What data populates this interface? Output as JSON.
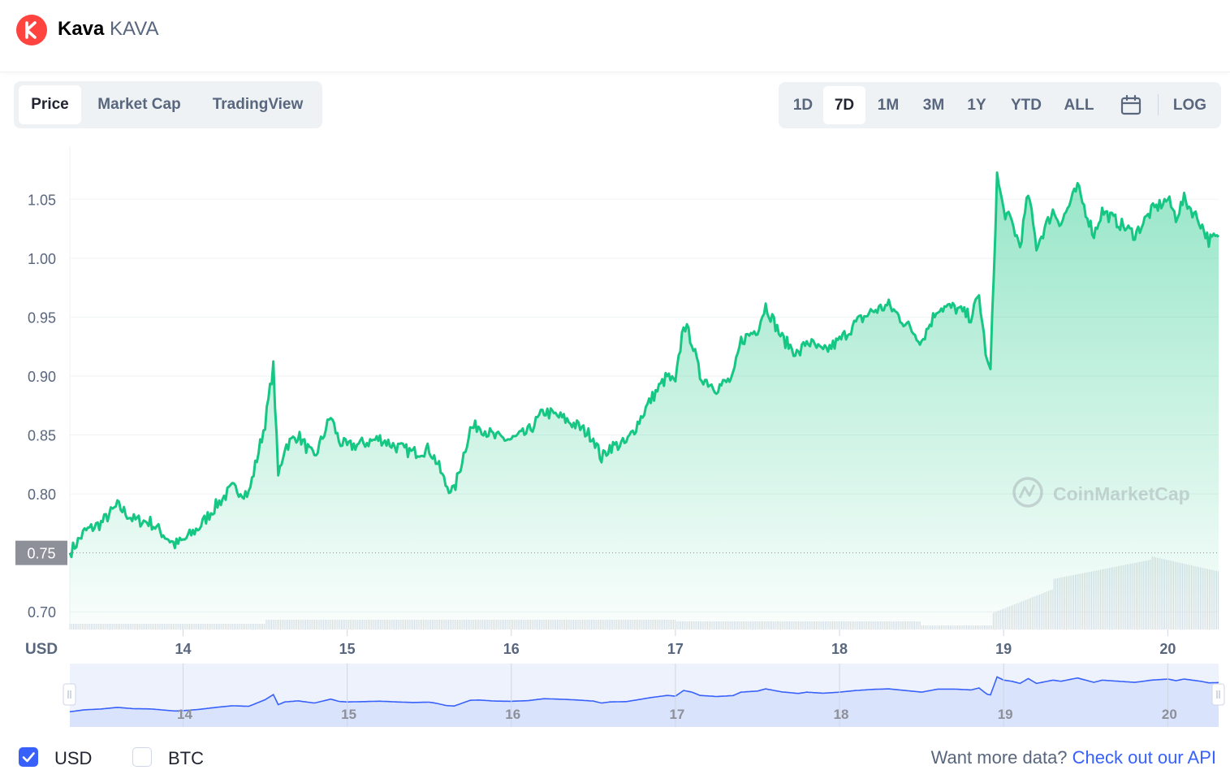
{
  "header": {
    "name": "Kava",
    "symbol": "KAVA"
  },
  "tabs": [
    "Price",
    "Market Cap",
    "TradingView"
  ],
  "ranges": [
    "1D",
    "7D",
    "1M",
    "3M",
    "1Y",
    "YTD",
    "ALL"
  ],
  "log_label": "LOG",
  "currency_options": [
    {
      "label": "USD",
      "checked": true
    },
    {
      "label": "BTC",
      "checked": false
    }
  ],
  "more_data": {
    "text": "Want more data?",
    "link": "Check out our API"
  },
  "watermark": "CoinMarketCap",
  "colors": {
    "line": "#16c784",
    "nav_line": "#3861fb",
    "current_label_bg": "#8d9099",
    "accent": "#3861fb"
  },
  "chart_data": {
    "type": "area",
    "xlabel": "USD",
    "y_ticks": [
      1.05,
      1.0,
      0.95,
      0.9,
      0.85,
      0.8,
      0.7
    ],
    "ylim": [
      0.685,
      1.095
    ],
    "x_ticks": [
      "14",
      "15",
      "16",
      "17",
      "18",
      "19",
      "20"
    ],
    "x_tick_positions": [
      14,
      15,
      16,
      17,
      18,
      19,
      20
    ],
    "xlim": [
      13.31,
      20.31
    ],
    "current_price": 0.75,
    "price_series": {
      "x": [
        13.31,
        13.4,
        13.5,
        13.6,
        13.7,
        13.8,
        13.95,
        14.0,
        14.1,
        14.2,
        14.3,
        14.4,
        14.5,
        14.55,
        14.58,
        14.62,
        14.7,
        14.8,
        14.9,
        14.95,
        15.0,
        15.1,
        15.2,
        15.3,
        15.4,
        15.5,
        15.55,
        15.6,
        15.65,
        15.75,
        15.8,
        15.9,
        16.0,
        16.1,
        16.2,
        16.3,
        16.4,
        16.5,
        16.55,
        16.6,
        16.7,
        16.75,
        16.85,
        16.95,
        17.0,
        17.05,
        17.1,
        17.15,
        17.25,
        17.35,
        17.4,
        17.5,
        17.55,
        17.65,
        17.75,
        17.8,
        17.9,
        18.0,
        18.1,
        18.2,
        18.3,
        18.4,
        18.5,
        18.6,
        18.7,
        18.8,
        18.85,
        18.9,
        18.92,
        18.96,
        19.0,
        19.05,
        19.1,
        19.15,
        19.2,
        19.3,
        19.35,
        19.45,
        19.55,
        19.6,
        19.7,
        19.8,
        19.9,
        20.0,
        20.05,
        20.1,
        20.2,
        20.25,
        20.31
      ],
      "y": [
        0.75,
        0.768,
        0.775,
        0.79,
        0.778,
        0.776,
        0.757,
        0.76,
        0.772,
        0.79,
        0.805,
        0.8,
        0.86,
        0.908,
        0.815,
        0.84,
        0.85,
        0.83,
        0.866,
        0.845,
        0.84,
        0.843,
        0.847,
        0.84,
        0.835,
        0.838,
        0.826,
        0.808,
        0.802,
        0.855,
        0.858,
        0.848,
        0.846,
        0.852,
        0.87,
        0.865,
        0.858,
        0.848,
        0.83,
        0.84,
        0.843,
        0.855,
        0.88,
        0.9,
        0.893,
        0.945,
        0.93,
        0.9,
        0.89,
        0.898,
        0.93,
        0.94,
        0.96,
        0.932,
        0.918,
        0.93,
        0.92,
        0.93,
        0.945,
        0.955,
        0.96,
        0.945,
        0.93,
        0.958,
        0.958,
        0.95,
        0.968,
        0.91,
        0.905,
        1.07,
        1.04,
        1.03,
        1.01,
        1.055,
        1.01,
        1.04,
        1.03,
        1.06,
        1.02,
        1.04,
        1.03,
        1.02,
        1.04,
        1.05,
        1.035,
        1.05,
        1.03,
        1.015,
        1.018
      ]
    },
    "navigator": {
      "x_ticks": [
        "14",
        "15",
        "16",
        "17",
        "18",
        "19",
        "20"
      ]
    }
  }
}
